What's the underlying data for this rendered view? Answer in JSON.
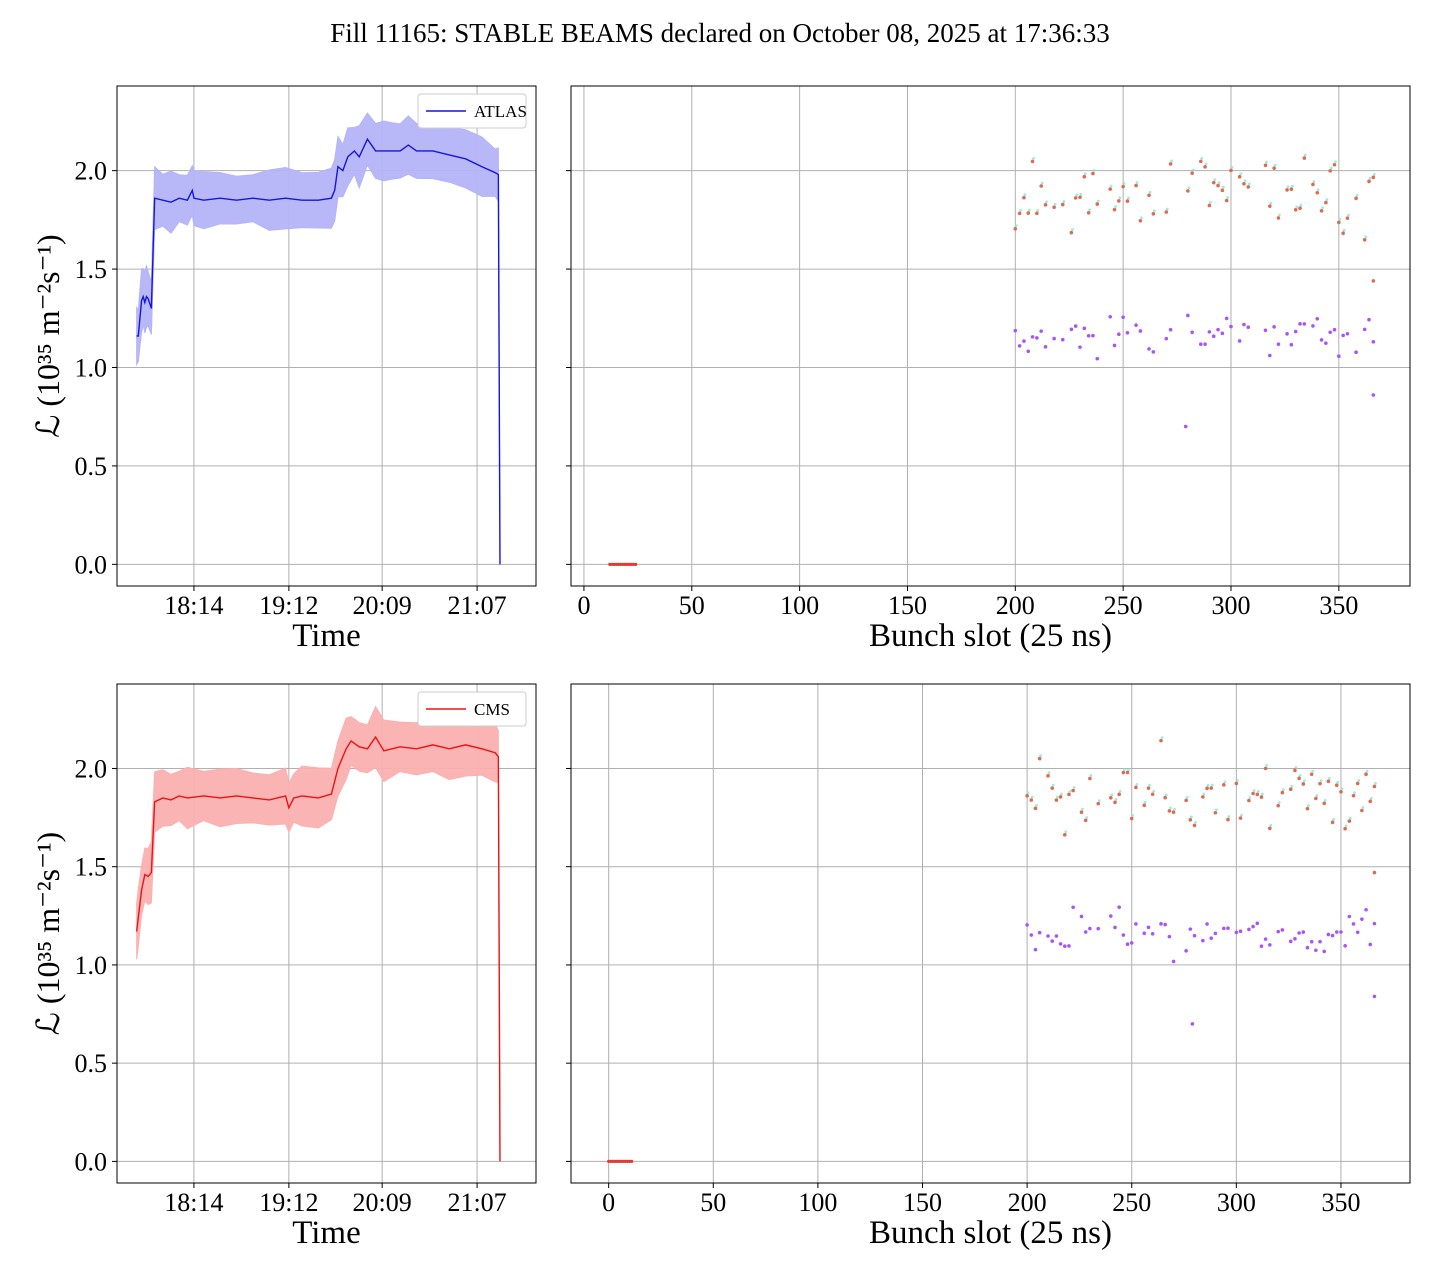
{
  "figure": {
    "title": "Fill 11165: STABLE BEAMS declared on October 08, 2025 at 17:36:33"
  },
  "colors": {
    "atlas_line": "#1515e0",
    "atlas_band": "#b4b4f8",
    "cms_line": "#ee1111",
    "cms_band": "#fbb0b0",
    "orange_points": "#dd6b4f",
    "purple_points": "#a855f7",
    "cyan_points": "#7ee8dd",
    "zero_points": "#e53935",
    "grid": "#b0b0b0"
  },
  "chart_data": [
    {
      "id": "atlas_time",
      "type": "line",
      "legend": "ATLAS",
      "legend_position": "upper right",
      "xlabel": "Time",
      "ylabel": "ℒ (10³⁵ m⁻²s⁻¹)",
      "x_ticks": [
        "18:14",
        "19:12",
        "20:09",
        "21:07"
      ],
      "y_ticks": [
        "0.0",
        "0.5",
        "1.0",
        "1.5",
        "2.0"
      ],
      "ylim": [
        -0.11,
        2.43
      ],
      "xlim": [
        "17:27",
        "21:43"
      ],
      "grid": true,
      "points": [
        [
          "17:39",
          1.16
        ],
        [
          "17:40",
          1.16
        ],
        [
          "17:42",
          1.34
        ],
        [
          "17:43",
          1.36
        ],
        [
          "17:44",
          1.33
        ],
        [
          "17:45",
          1.36
        ],
        [
          "17:46",
          1.35
        ],
        [
          "17:48",
          1.3
        ],
        [
          "17:50",
          1.86
        ],
        [
          "17:55",
          1.85
        ],
        [
          "18:00",
          1.84
        ],
        [
          "18:05",
          1.86
        ],
        [
          "18:10",
          1.85
        ],
        [
          "18:13",
          1.9
        ],
        [
          "18:14",
          1.86
        ],
        [
          "18:20",
          1.85
        ],
        [
          "18:30",
          1.86
        ],
        [
          "18:40",
          1.85
        ],
        [
          "18:50",
          1.86
        ],
        [
          "19:00",
          1.85
        ],
        [
          "19:10",
          1.86
        ],
        [
          "19:20",
          1.85
        ],
        [
          "19:30",
          1.85
        ],
        [
          "19:38",
          1.86
        ],
        [
          "19:40",
          1.9
        ],
        [
          "19:42",
          2.02
        ],
        [
          "19:45",
          2.0
        ],
        [
          "19:48",
          2.07
        ],
        [
          "19:52",
          2.1
        ],
        [
          "19:55",
          2.07
        ],
        [
          "20:00",
          2.16
        ],
        [
          "20:05",
          2.1
        ],
        [
          "20:10",
          2.1
        ],
        [
          "20:15",
          2.1
        ],
        [
          "20:20",
          2.1
        ],
        [
          "20:25",
          2.13
        ],
        [
          "20:30",
          2.1
        ],
        [
          "20:40",
          2.1
        ],
        [
          "20:50",
          2.08
        ],
        [
          "21:00",
          2.06
        ],
        [
          "21:10",
          2.02
        ],
        [
          "21:18",
          1.99
        ],
        [
          "21:20",
          1.98
        ],
        [
          "21:21",
          0.0
        ]
      ],
      "band_half_width": 0.14
    },
    {
      "id": "atlas_bunch",
      "type": "scatter",
      "xlabel": "Bunch slot (25 ns)",
      "x_ticks": [
        0,
        50,
        100,
        150,
        200,
        250,
        300,
        350
      ],
      "xlim": [
        -6,
        383
      ],
      "ylim": [
        -0.11,
        2.43
      ],
      "grid": true,
      "zero_bunches": [
        12,
        24
      ],
      "seed": 11,
      "upper_band": {
        "mean": 1.86,
        "spread": 0.15,
        "start": 200,
        "end": 366
      },
      "lower_band": {
        "mean": 1.17,
        "spread": 0.09,
        "start": 200,
        "end": 366
      },
      "outliers": [
        [
          279,
          0.7
        ],
        [
          366,
          0.86
        ],
        [
          366,
          1.44
        ]
      ]
    },
    {
      "id": "cms_time",
      "type": "line",
      "legend": "CMS",
      "legend_position": "upper right",
      "xlabel": "Time",
      "ylabel": "ℒ (10³⁵ m⁻²s⁻¹)",
      "x_ticks": [
        "18:14",
        "19:12",
        "20:09",
        "21:07"
      ],
      "y_ticks": [
        "0.0",
        "0.5",
        "1.0",
        "1.5",
        "2.0"
      ],
      "ylim": [
        -0.11,
        2.43
      ],
      "xlim": [
        "17:27",
        "21:43"
      ],
      "grid": true,
      "points": [
        [
          "17:39",
          1.17
        ],
        [
          "17:40",
          1.24
        ],
        [
          "17:42",
          1.38
        ],
        [
          "17:44",
          1.46
        ],
        [
          "17:46",
          1.45
        ],
        [
          "17:48",
          1.47
        ],
        [
          "17:50",
          1.83
        ],
        [
          "17:55",
          1.85
        ],
        [
          "18:00",
          1.84
        ],
        [
          "18:05",
          1.86
        ],
        [
          "18:10",
          1.85
        ],
        [
          "18:20",
          1.86
        ],
        [
          "18:30",
          1.85
        ],
        [
          "18:40",
          1.86
        ],
        [
          "18:50",
          1.85
        ],
        [
          "19:00",
          1.84
        ],
        [
          "19:10",
          1.86
        ],
        [
          "19:12",
          1.8
        ],
        [
          "19:15",
          1.85
        ],
        [
          "19:20",
          1.86
        ],
        [
          "19:30",
          1.85
        ],
        [
          "19:38",
          1.87
        ],
        [
          "19:42",
          2.0
        ],
        [
          "19:47",
          2.1
        ],
        [
          "19:50",
          2.14
        ],
        [
          "19:55",
          2.11
        ],
        [
          "20:00",
          2.1
        ],
        [
          "20:05",
          2.16
        ],
        [
          "20:10",
          2.09
        ],
        [
          "20:20",
          2.11
        ],
        [
          "20:30",
          2.1
        ],
        [
          "20:40",
          2.12
        ],
        [
          "20:50",
          2.1
        ],
        [
          "21:00",
          2.12
        ],
        [
          "21:10",
          2.1
        ],
        [
          "21:18",
          2.08
        ],
        [
          "21:20",
          2.06
        ],
        [
          "21:21",
          0.0
        ]
      ],
      "band_half_width": 0.14
    },
    {
      "id": "cms_bunch",
      "type": "scatter",
      "xlabel": "Bunch slot (25 ns)",
      "x_ticks": [
        0,
        50,
        100,
        150,
        200,
        250,
        300,
        350
      ],
      "xlim": [
        -18,
        383
      ],
      "ylim": [
        -0.11,
        2.43
      ],
      "grid": true,
      "zero_bunches": [
        0,
        11
      ],
      "seed": 23,
      "upper_band": {
        "mean": 1.87,
        "spread": 0.15,
        "start": 200,
        "end": 366
      },
      "lower_band": {
        "mean": 1.17,
        "spread": 0.09,
        "start": 200,
        "end": 366
      },
      "outliers": [
        [
          279,
          0.7
        ],
        [
          366,
          0.84
        ],
        [
          366,
          1.47
        ]
      ]
    }
  ]
}
